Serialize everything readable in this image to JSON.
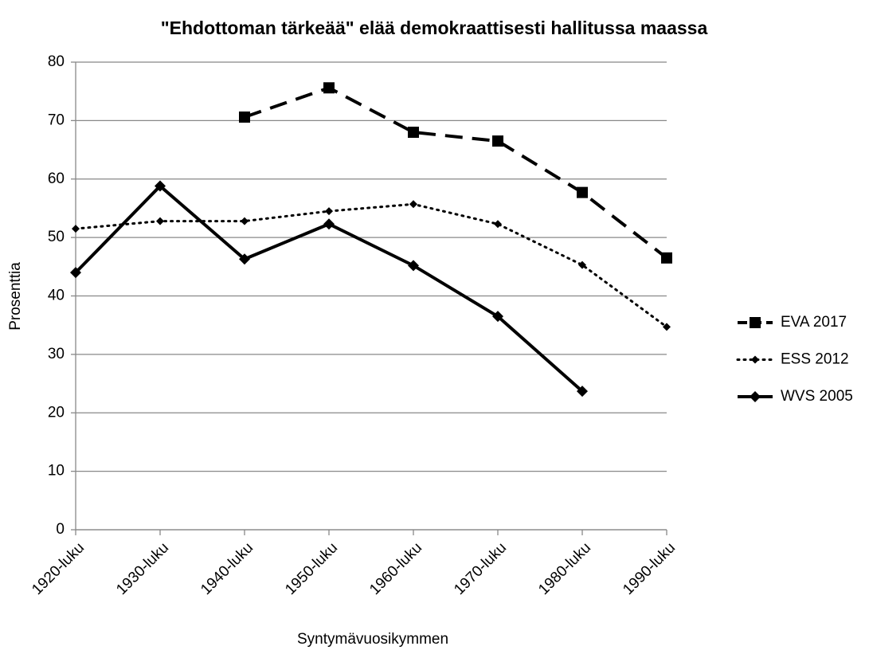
{
  "chart_data": {
    "type": "line",
    "title": "\"Ehdottoman tärkeää\" elää demokraattisesti hallitussa maassa",
    "x_label": "Syntymävuosikymmen",
    "y_label": "Prosenttia",
    "categories": [
      "1920-luku",
      "1930-luku",
      "1940-luku",
      "1950-luku",
      "1960-luku",
      "1970-luku",
      "1980-luku",
      "1990-luku"
    ],
    "series": [
      {
        "name": "EVA 2017",
        "color": "#000000",
        "dash": "dashed",
        "marker": "square",
        "values": [
          null,
          null,
          70.6,
          75.6,
          68,
          66.5,
          57.7,
          46.5
        ]
      },
      {
        "name": "ESS 2012",
        "color": "#000000",
        "dash": "dotted",
        "marker": "star",
        "values": [
          51.5,
          52.8,
          52.8,
          54.5,
          55.7,
          52.3,
          45.3,
          34.7
        ]
      },
      {
        "name": "WVS 2005",
        "color": "#000000",
        "dash": "solid",
        "marker": "diamond",
        "values": [
          44,
          58.8,
          46.3,
          52.3,
          45.2,
          36.5,
          23.7,
          null
        ]
      }
    ],
    "ylim": [
      0,
      80
    ],
    "yticks": [
      0,
      10,
      20,
      30,
      40,
      50,
      60,
      70,
      80
    ],
    "grid": true,
    "legend": "right"
  }
}
